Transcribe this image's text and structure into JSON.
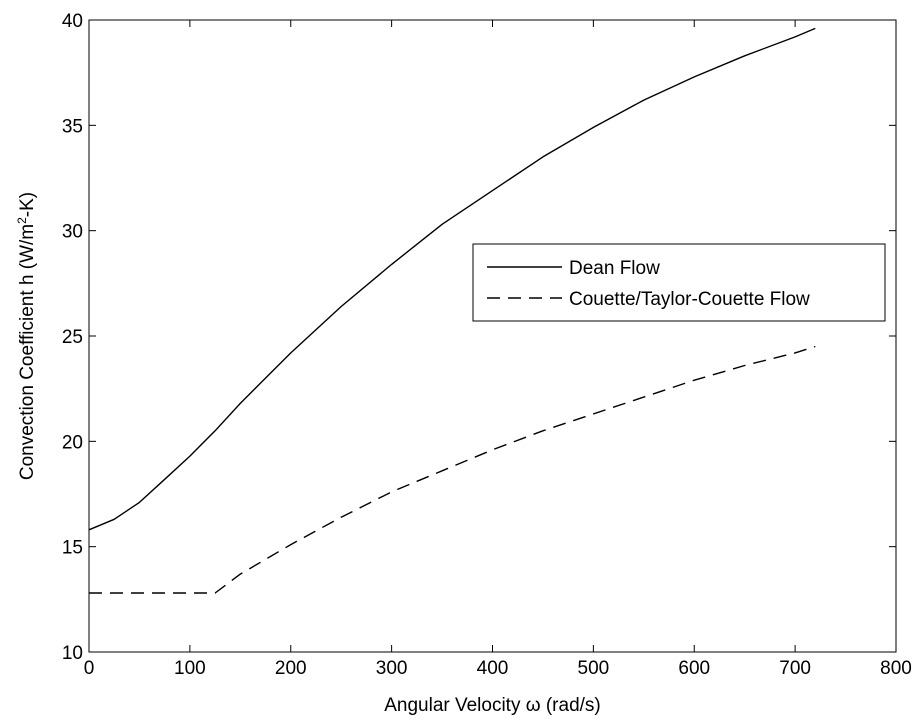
{
  "chart_data": {
    "type": "line",
    "title": "",
    "xlabel": "Angular Velocity ω (rad/s)",
    "ylabel_prefix": "Convection Coefficient h (W/m",
    "ylabel_sup": "2",
    "ylabel_suffix": "-K)",
    "xlim": [
      0,
      800
    ],
    "ylim": [
      10,
      40
    ],
    "xticks": [
      0,
      100,
      200,
      300,
      400,
      500,
      600,
      700,
      800
    ],
    "yticks": [
      10,
      15,
      20,
      25,
      30,
      35,
      40
    ],
    "grid": false,
    "legend_position": "center-right",
    "series": [
      {
        "name": "Dean Flow",
        "line_style": "solid",
        "color": "#000000",
        "x": [
          0,
          25,
          50,
          75,
          100,
          125,
          150,
          175,
          200,
          250,
          300,
          350,
          400,
          450,
          500,
          550,
          600,
          650,
          700,
          720
        ],
        "y": [
          15.8,
          16.3,
          17.1,
          18.2,
          19.3,
          20.5,
          21.8,
          23.0,
          24.2,
          26.4,
          28.4,
          30.3,
          31.9,
          33.5,
          34.9,
          36.2,
          37.3,
          38.3,
          39.2,
          39.6
        ]
      },
      {
        "name": "Couette/Taylor-Couette Flow",
        "line_style": "dashed",
        "color": "#000000",
        "x": [
          0,
          50,
          100,
          125,
          150,
          200,
          250,
          300,
          350,
          400,
          450,
          500,
          550,
          600,
          650,
          700,
          720
        ],
        "y": [
          12.8,
          12.8,
          12.8,
          12.8,
          13.7,
          15.1,
          16.4,
          17.6,
          18.6,
          19.6,
          20.5,
          21.3,
          22.1,
          22.9,
          23.6,
          24.2,
          24.5
        ]
      }
    ]
  }
}
